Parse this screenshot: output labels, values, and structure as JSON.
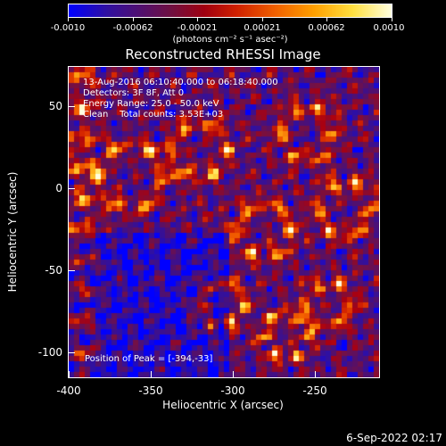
{
  "colorbar": {
    "ticks": [
      "-0.0010",
      "-0.00062",
      "-0.00021",
      "0.00021",
      "0.00062",
      "0.0010"
    ],
    "units": "(photons cm⁻² s⁻¹ asec⁻²)"
  },
  "title": "Reconstructed RHESSI Image",
  "info": {
    "line1": "13-Aug-2016 06:10:40.000 to 06:18:40.000",
    "line2": "Detectors: 3F 8F, Att 0",
    "line3": "Energy Range: 25.0 - 50.0 keV",
    "line4": "Clean    Total counts: 3.53E+03",
    "peak": "Position of Peak = [-394,-33]"
  },
  "chart_data": {
    "type": "heatmap",
    "title": "Reconstructed RHESSI Image",
    "xlabel": "Heliocentric X (arcsec)",
    "ylabel": "Heliocentric Y (arcsec)",
    "xlim": [
      -400,
      -210
    ],
    "ylim": [
      -120,
      70
    ],
    "xticks": [
      "-400",
      "-350",
      "-300",
      "-250"
    ],
    "yticks": [
      "50",
      "0",
      "-50",
      "-100"
    ],
    "peak_position": [
      -394,
      -33
    ]
  },
  "timestamp": "6-Sep-2022 02:17"
}
